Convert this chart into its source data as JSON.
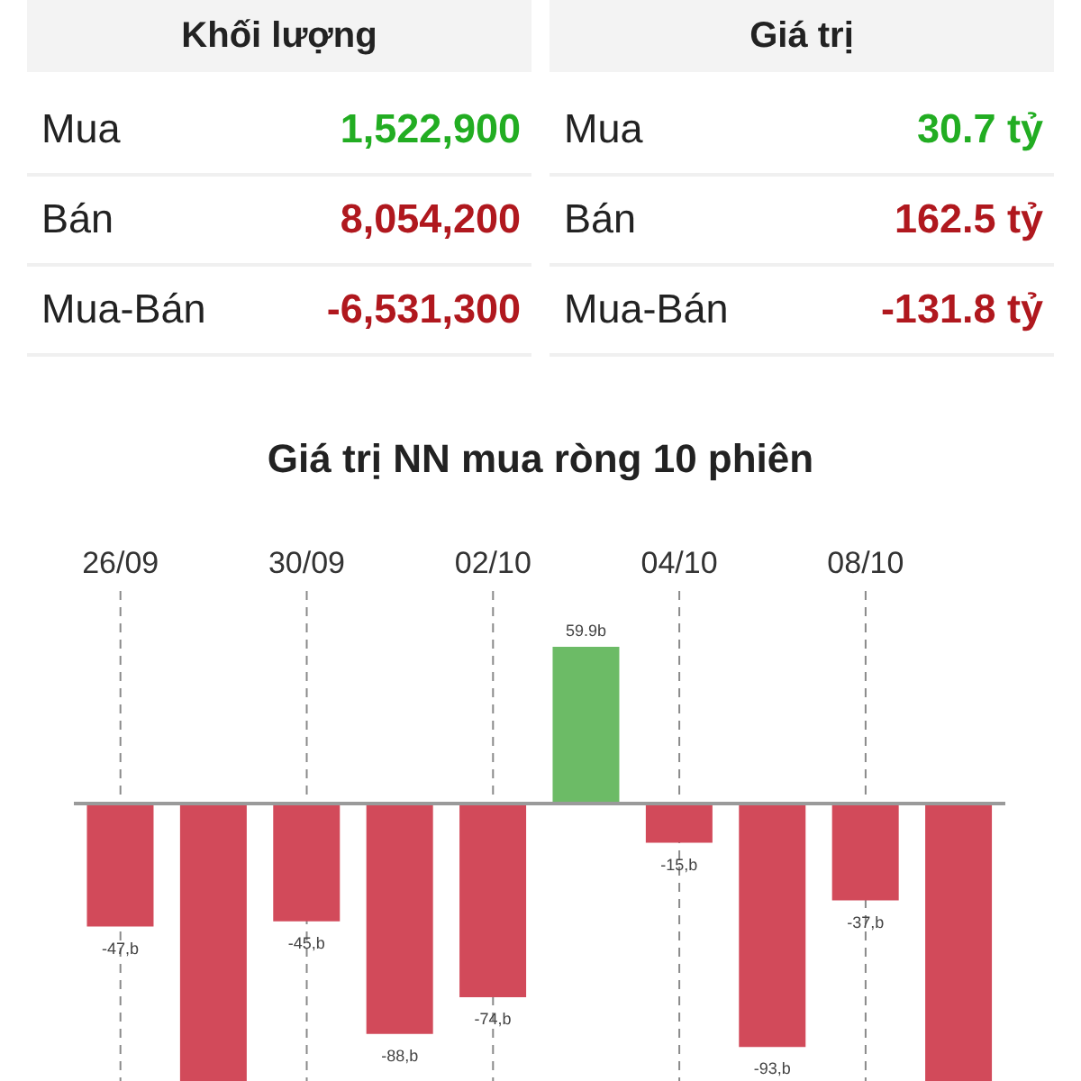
{
  "chart_data": [
    {
      "type": "other",
      "annotations": [
        "Khối lượng",
        "Giá trị",
        "Mua",
        "1,522,900",
        "Mua",
        "30.7 tỷ",
        "Bán",
        "8,054,200",
        "Bán",
        "162.5 tỷ",
        "Mua-Bán",
        "-6,531,300",
        "Mua-Bán",
        "-131.8 tỷ"
      ],
      "colors": [
        "#222222",
        "#222222",
        "#222222",
        "#22ad22",
        "#222222",
        "#22ad22",
        "#222222",
        "#b0181e",
        "#222222",
        "#b0181e",
        "#222222",
        "#b0181e",
        "#222222",
        "#b0181e"
      ]
    },
    {
      "type": "bar",
      "title": "Giá trị NN mua ròng 10 phiên",
      "categories": [
        "26/09",
        null,
        "30/09",
        null,
        "02/10",
        null,
        "04/10",
        null,
        "08/10",
        null
      ],
      "values": [
        -47,
        -106,
        -45,
        -88,
        -74,
        59.9,
        -15,
        -93,
        -37,
        -106
      ],
      "value_labels": [
        "-47,b",
        null,
        "-45,b",
        "-88,b",
        "-74,b",
        "59.9b",
        "-15,b",
        "-93,b",
        "-37,b",
        null
      ],
      "colors": [
        "#d24a5a",
        "#d24a5a",
        "#d24a5a",
        "#d24a5a",
        "#d24a5a",
        "#6cbb66",
        "#d24a5a",
        "#d24a5a",
        "#d24a5a",
        "#d24a5a"
      ],
      "ref_lines": [
        {
          "axis": "y",
          "value": 0,
          "color": "#9a9a9a"
        }
      ],
      "grid": "x",
      "line_style": "dashed",
      "tick_labels": "x"
    }
  ]
}
